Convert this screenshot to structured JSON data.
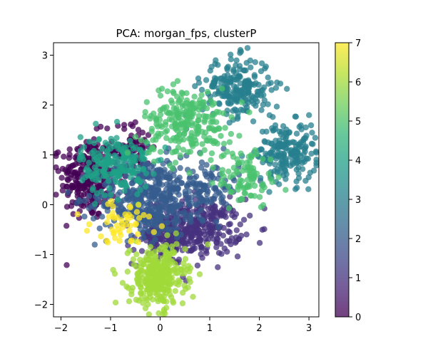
{
  "chart_data": {
    "type": "scatter",
    "title": "PCA: morgan_fps, clusterP",
    "xlabel": "",
    "ylabel": "",
    "xlim": [
      -2.15,
      3.2
    ],
    "ylim": [
      -2.25,
      3.25
    ],
    "xticks": [
      -2,
      -1,
      0,
      1,
      2,
      3
    ],
    "yticks": [
      -2,
      -1,
      0,
      1,
      2,
      3
    ],
    "grid": false,
    "point_alpha": 0.75,
    "colorbar": {
      "label": "",
      "min": 0,
      "max": 7,
      "ticks": [
        0,
        1,
        2,
        3,
        4,
        5,
        6,
        7
      ],
      "colormap": "viridis"
    },
    "clusters": [
      {
        "value": 0,
        "center": [
          -1.45,
          0.55
        ],
        "spread": [
          0.28,
          0.42
        ],
        "count": 260,
        "color": "#440154"
      },
      {
        "value": 0,
        "center": [
          -0.55,
          1.15
        ],
        "spread": [
          0.2,
          0.25
        ],
        "count": 80,
        "color": "#440154"
      },
      {
        "value": 1,
        "center": [
          0.75,
          -0.45
        ],
        "spread": [
          0.45,
          0.28
        ],
        "count": 320,
        "color": "#46327e"
      },
      {
        "value": 1,
        "center": [
          0.05,
          -0.7
        ],
        "spread": [
          0.3,
          0.25
        ],
        "count": 120,
        "color": "#46327e"
      },
      {
        "value": 2,
        "center": [
          -0.3,
          0.15
        ],
        "spread": [
          0.5,
          0.4
        ],
        "count": 420,
        "color": "#365c8d"
      },
      {
        "value": 2,
        "center": [
          0.9,
          0.35
        ],
        "spread": [
          0.35,
          0.3
        ],
        "count": 120,
        "color": "#365c8d"
      },
      {
        "value": 3,
        "center": [
          1.55,
          2.35
        ],
        "spread": [
          0.35,
          0.3
        ],
        "count": 220,
        "color": "#277f8e"
      },
      {
        "value": 3,
        "center": [
          2.55,
          1.05
        ],
        "spread": [
          0.3,
          0.3
        ],
        "count": 200,
        "color": "#277f8e"
      },
      {
        "value": 4,
        "center": [
          -0.9,
          0.8
        ],
        "spread": [
          0.35,
          0.3
        ],
        "count": 200,
        "color": "#1fa187"
      },
      {
        "value": 5,
        "center": [
          0.55,
          1.65
        ],
        "spread": [
          0.45,
          0.35
        ],
        "count": 240,
        "color": "#4ac16d"
      },
      {
        "value": 5,
        "center": [
          1.75,
          0.55
        ],
        "spread": [
          0.3,
          0.3
        ],
        "count": 90,
        "color": "#4ac16d"
      },
      {
        "value": 6,
        "center": [
          -0.05,
          -1.45
        ],
        "spread": [
          0.28,
          0.3
        ],
        "count": 320,
        "color": "#a0da39"
      },
      {
        "value": 7,
        "center": [
          -0.7,
          -0.35
        ],
        "spread": [
          0.35,
          0.2
        ],
        "count": 50,
        "color": "#fde725"
      }
    ]
  }
}
